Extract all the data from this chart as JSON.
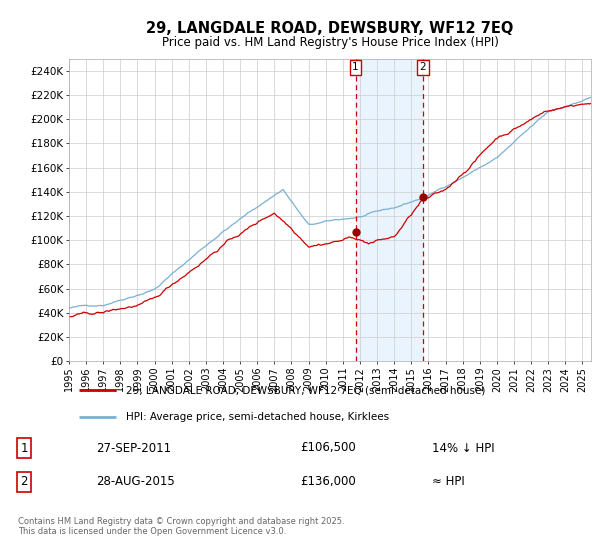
{
  "title": "29, LANGDALE ROAD, DEWSBURY, WF12 7EQ",
  "subtitle": "Price paid vs. HM Land Registry's House Price Index (HPI)",
  "ylabel_ticks": [
    "£0",
    "£20K",
    "£40K",
    "£60K",
    "£80K",
    "£100K",
    "£120K",
    "£140K",
    "£160K",
    "£180K",
    "£200K",
    "£220K",
    "£240K"
  ],
  "ylim": [
    0,
    250000
  ],
  "xlim_start": 1995.0,
  "xlim_end": 2025.5,
  "legend_line1": "29, LANGDALE ROAD, DEWSBURY, WF12 7EQ (semi-detached house)",
  "legend_line2": "HPI: Average price, semi-detached house, Kirklees",
  "red_line_color": "#cc0000",
  "blue_line_color": "#7ab0d4",
  "marker_color": "#990000",
  "vline1_x": 2011.74,
  "vline2_x": 2015.66,
  "marker1_x": 2011.74,
  "marker1_y": 106500,
  "marker2_x": 2015.66,
  "marker2_y": 136000,
  "table_row1": [
    "1",
    "27-SEP-2011",
    "£106,500",
    "14% ↓ HPI"
  ],
  "table_row2": [
    "2",
    "28-AUG-2015",
    "£136,000",
    "≈ HPI"
  ],
  "footnote": "Contains HM Land Registry data © Crown copyright and database right 2025.\nThis data is licensed under the Open Government Licence v3.0.",
  "plot_bg": "#ffffff",
  "grid_color": "#cccccc",
  "shade_color": "#ddeeff"
}
